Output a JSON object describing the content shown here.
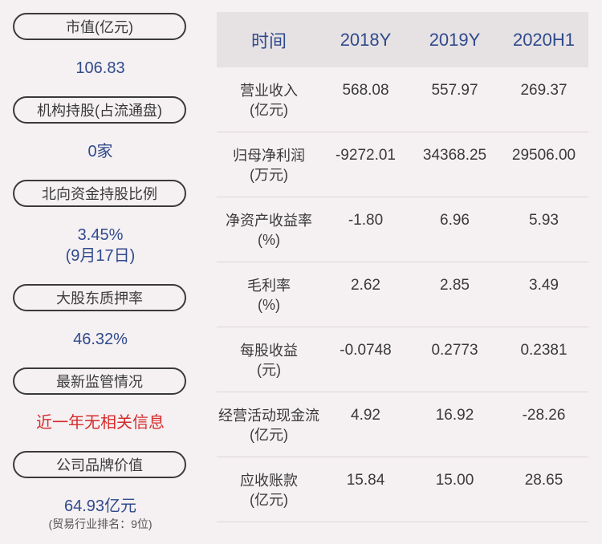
{
  "left": {
    "items": [
      {
        "label": "市值(亿元)",
        "value": "106.83"
      },
      {
        "label": "机构持股(占流通盘)",
        "value": "0家"
      },
      {
        "label": "北向资金持股比例",
        "value": "3.45%",
        "value2": "(9月17日)"
      },
      {
        "label": "大股东质押率",
        "value": "46.32%"
      },
      {
        "label": "最新监管情况",
        "value": "近一年无相关信息"
      },
      {
        "label": "公司品牌价值",
        "value": "64.93亿元",
        "note": "(贸易行业排名：9位)"
      }
    ]
  },
  "table": {
    "headers": [
      "时间",
      "2018Y",
      "2019Y",
      "2020H1"
    ],
    "rows": [
      {
        "name": "营业收入",
        "unit": "(亿元)",
        "values": [
          "568.08",
          "557.97",
          "269.37"
        ]
      },
      {
        "name": "归母净利润",
        "unit": "(万元)",
        "values": [
          "-9272.01",
          "34368.25",
          "29506.00"
        ]
      },
      {
        "name": "净资产收益率",
        "unit": "(%)",
        "values": [
          "-1.80",
          "6.96",
          "5.93"
        ]
      },
      {
        "name": "毛利率",
        "unit": "(%)",
        "values": [
          "2.62",
          "2.85",
          "3.49"
        ]
      },
      {
        "name": "每股收益",
        "unit": "(元)",
        "values": [
          "-0.0748",
          "0.2773",
          "0.2381"
        ]
      },
      {
        "name": "经营活动现金流",
        "unit": "(亿元)",
        "values": [
          "4.92",
          "16.92",
          "-28.26"
        ]
      },
      {
        "name": "应收账款",
        "unit": "(亿元)",
        "values": [
          "15.84",
          "15.00",
          "28.65"
        ]
      }
    ]
  }
}
